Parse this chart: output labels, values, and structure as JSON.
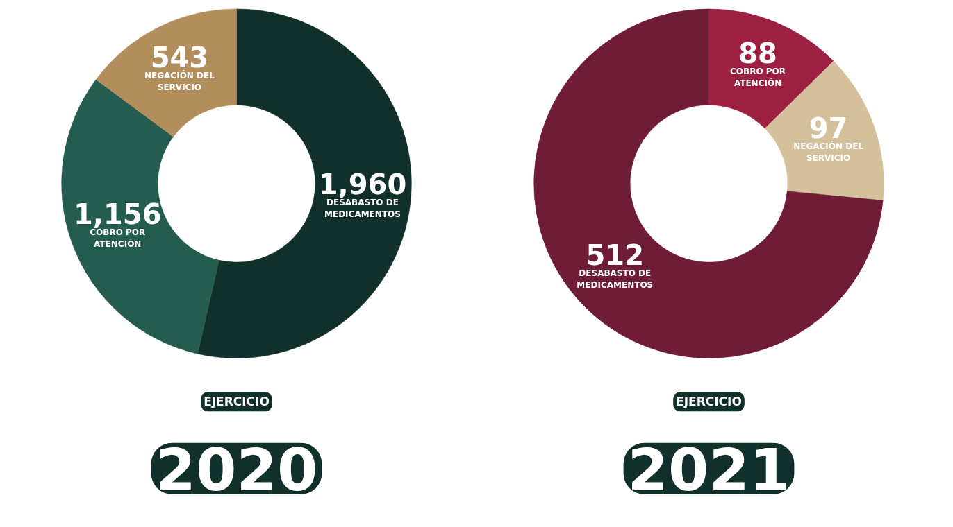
{
  "chart_data": [
    {
      "type": "donut",
      "title": "2020",
      "subtitle": "EJERCICIO",
      "categories": [
        "DESABASTO DE MEDICAMENTOS",
        "COBRO POR ATENCIÓN",
        "NEGACIÓN DEL SERVICIO"
      ],
      "values": [
        1960,
        1156,
        543
      ],
      "value_labels": [
        "1,960",
        "1,156",
        "543"
      ],
      "colors": [
        "#12302b",
        "#245c4f",
        "#b38e5d"
      ],
      "legend": false
    },
    {
      "type": "donut",
      "title": "2021",
      "subtitle": "EJERCICIO",
      "categories": [
        "COBRO POR ATENCIÓN",
        "NEGACIÓN DEL SERVICIO",
        "DESABASTO DE MEDICAMENTOS"
      ],
      "values": [
        88,
        97,
        512
      ],
      "value_labels": [
        "88",
        "97",
        "512"
      ],
      "colors": [
        "#9d2042",
        "#d4c19c",
        "#6f1d36"
      ],
      "legend": false
    }
  ]
}
